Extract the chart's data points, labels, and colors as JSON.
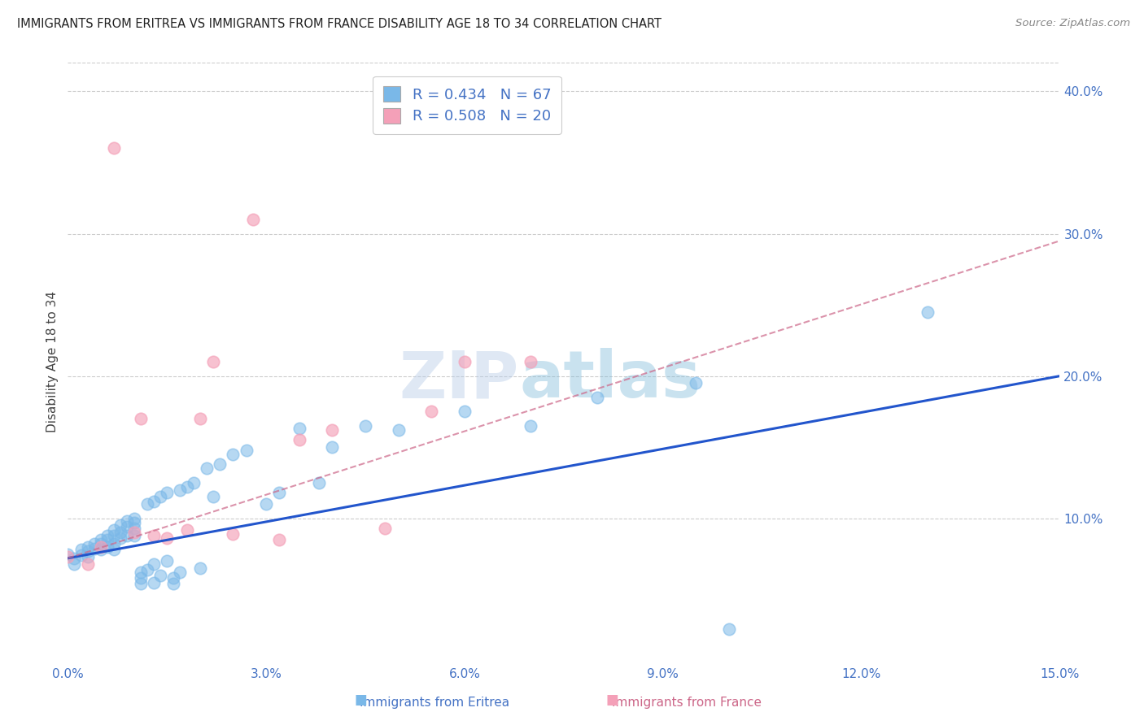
{
  "title": "IMMIGRANTS FROM ERITREA VS IMMIGRANTS FROM FRANCE DISABILITY AGE 18 TO 34 CORRELATION CHART",
  "source": "Source: ZipAtlas.com",
  "ylabel": "Disability Age 18 to 34",
  "xlim": [
    0.0,
    0.15
  ],
  "ylim": [
    0.0,
    0.42
  ],
  "xticks": [
    0.0,
    0.03,
    0.06,
    0.09,
    0.12,
    0.15
  ],
  "yticks_right": [
    0.1,
    0.2,
    0.3,
    0.4
  ],
  "watermark": "ZIPAtlas",
  "legend_eritrea_r": "R = 0.434",
  "legend_eritrea_n": "N = 67",
  "legend_france_r": "R = 0.508",
  "legend_france_n": "N = 20",
  "color_eritrea": "#7ab8e8",
  "color_france": "#f4a0b8",
  "color_trendline_eritrea": "#2255cc",
  "color_trendline_france": "#cc6688",
  "color_axis_labels": "#4472c4",
  "color_watermark": "#cdddf5",
  "eritrea_trendline_x0": 0.0,
  "eritrea_trendline_y0": 0.072,
  "eritrea_trendline_x1": 0.15,
  "eritrea_trendline_y1": 0.2,
  "france_trendline_x0": 0.0,
  "france_trendline_y0": 0.072,
  "france_trendline_x1": 0.15,
  "france_trendline_y1": 0.295,
  "eritrea_x": [
    0.0,
    0.001,
    0.001,
    0.002,
    0.002,
    0.003,
    0.003,
    0.003,
    0.004,
    0.004,
    0.005,
    0.005,
    0.005,
    0.006,
    0.006,
    0.006,
    0.007,
    0.007,
    0.007,
    0.007,
    0.008,
    0.008,
    0.008,
    0.009,
    0.009,
    0.009,
    0.01,
    0.01,
    0.01,
    0.01,
    0.011,
    0.011,
    0.011,
    0.012,
    0.012,
    0.013,
    0.013,
    0.013,
    0.014,
    0.014,
    0.015,
    0.015,
    0.016,
    0.016,
    0.017,
    0.017,
    0.018,
    0.019,
    0.02,
    0.021,
    0.022,
    0.023,
    0.025,
    0.027,
    0.03,
    0.032,
    0.035,
    0.038,
    0.04,
    0.045,
    0.05,
    0.06,
    0.07,
    0.08,
    0.095,
    0.1,
    0.13
  ],
  "eritrea_y": [
    0.075,
    0.072,
    0.068,
    0.078,
    0.074,
    0.08,
    0.077,
    0.073,
    0.082,
    0.079,
    0.085,
    0.082,
    0.078,
    0.088,
    0.085,
    0.08,
    0.092,
    0.088,
    0.082,
    0.078,
    0.095,
    0.09,
    0.086,
    0.098,
    0.094,
    0.088,
    0.1,
    0.097,
    0.093,
    0.088,
    0.062,
    0.058,
    0.054,
    0.11,
    0.064,
    0.112,
    0.068,
    0.055,
    0.115,
    0.06,
    0.118,
    0.07,
    0.058,
    0.054,
    0.12,
    0.062,
    0.122,
    0.125,
    0.065,
    0.135,
    0.115,
    0.138,
    0.145,
    0.148,
    0.11,
    0.118,
    0.163,
    0.125,
    0.15,
    0.165,
    0.162,
    0.175,
    0.165,
    0.185,
    0.195,
    0.022,
    0.245
  ],
  "france_x": [
    0.0,
    0.003,
    0.005,
    0.007,
    0.01,
    0.011,
    0.013,
    0.015,
    0.018,
    0.02,
    0.022,
    0.025,
    0.028,
    0.032,
    0.035,
    0.04,
    0.048,
    0.055,
    0.06,
    0.07
  ],
  "france_y": [
    0.073,
    0.068,
    0.08,
    0.36,
    0.09,
    0.17,
    0.088,
    0.086,
    0.092,
    0.17,
    0.21,
    0.089,
    0.31,
    0.085,
    0.155,
    0.162,
    0.093,
    0.175,
    0.21,
    0.21
  ]
}
